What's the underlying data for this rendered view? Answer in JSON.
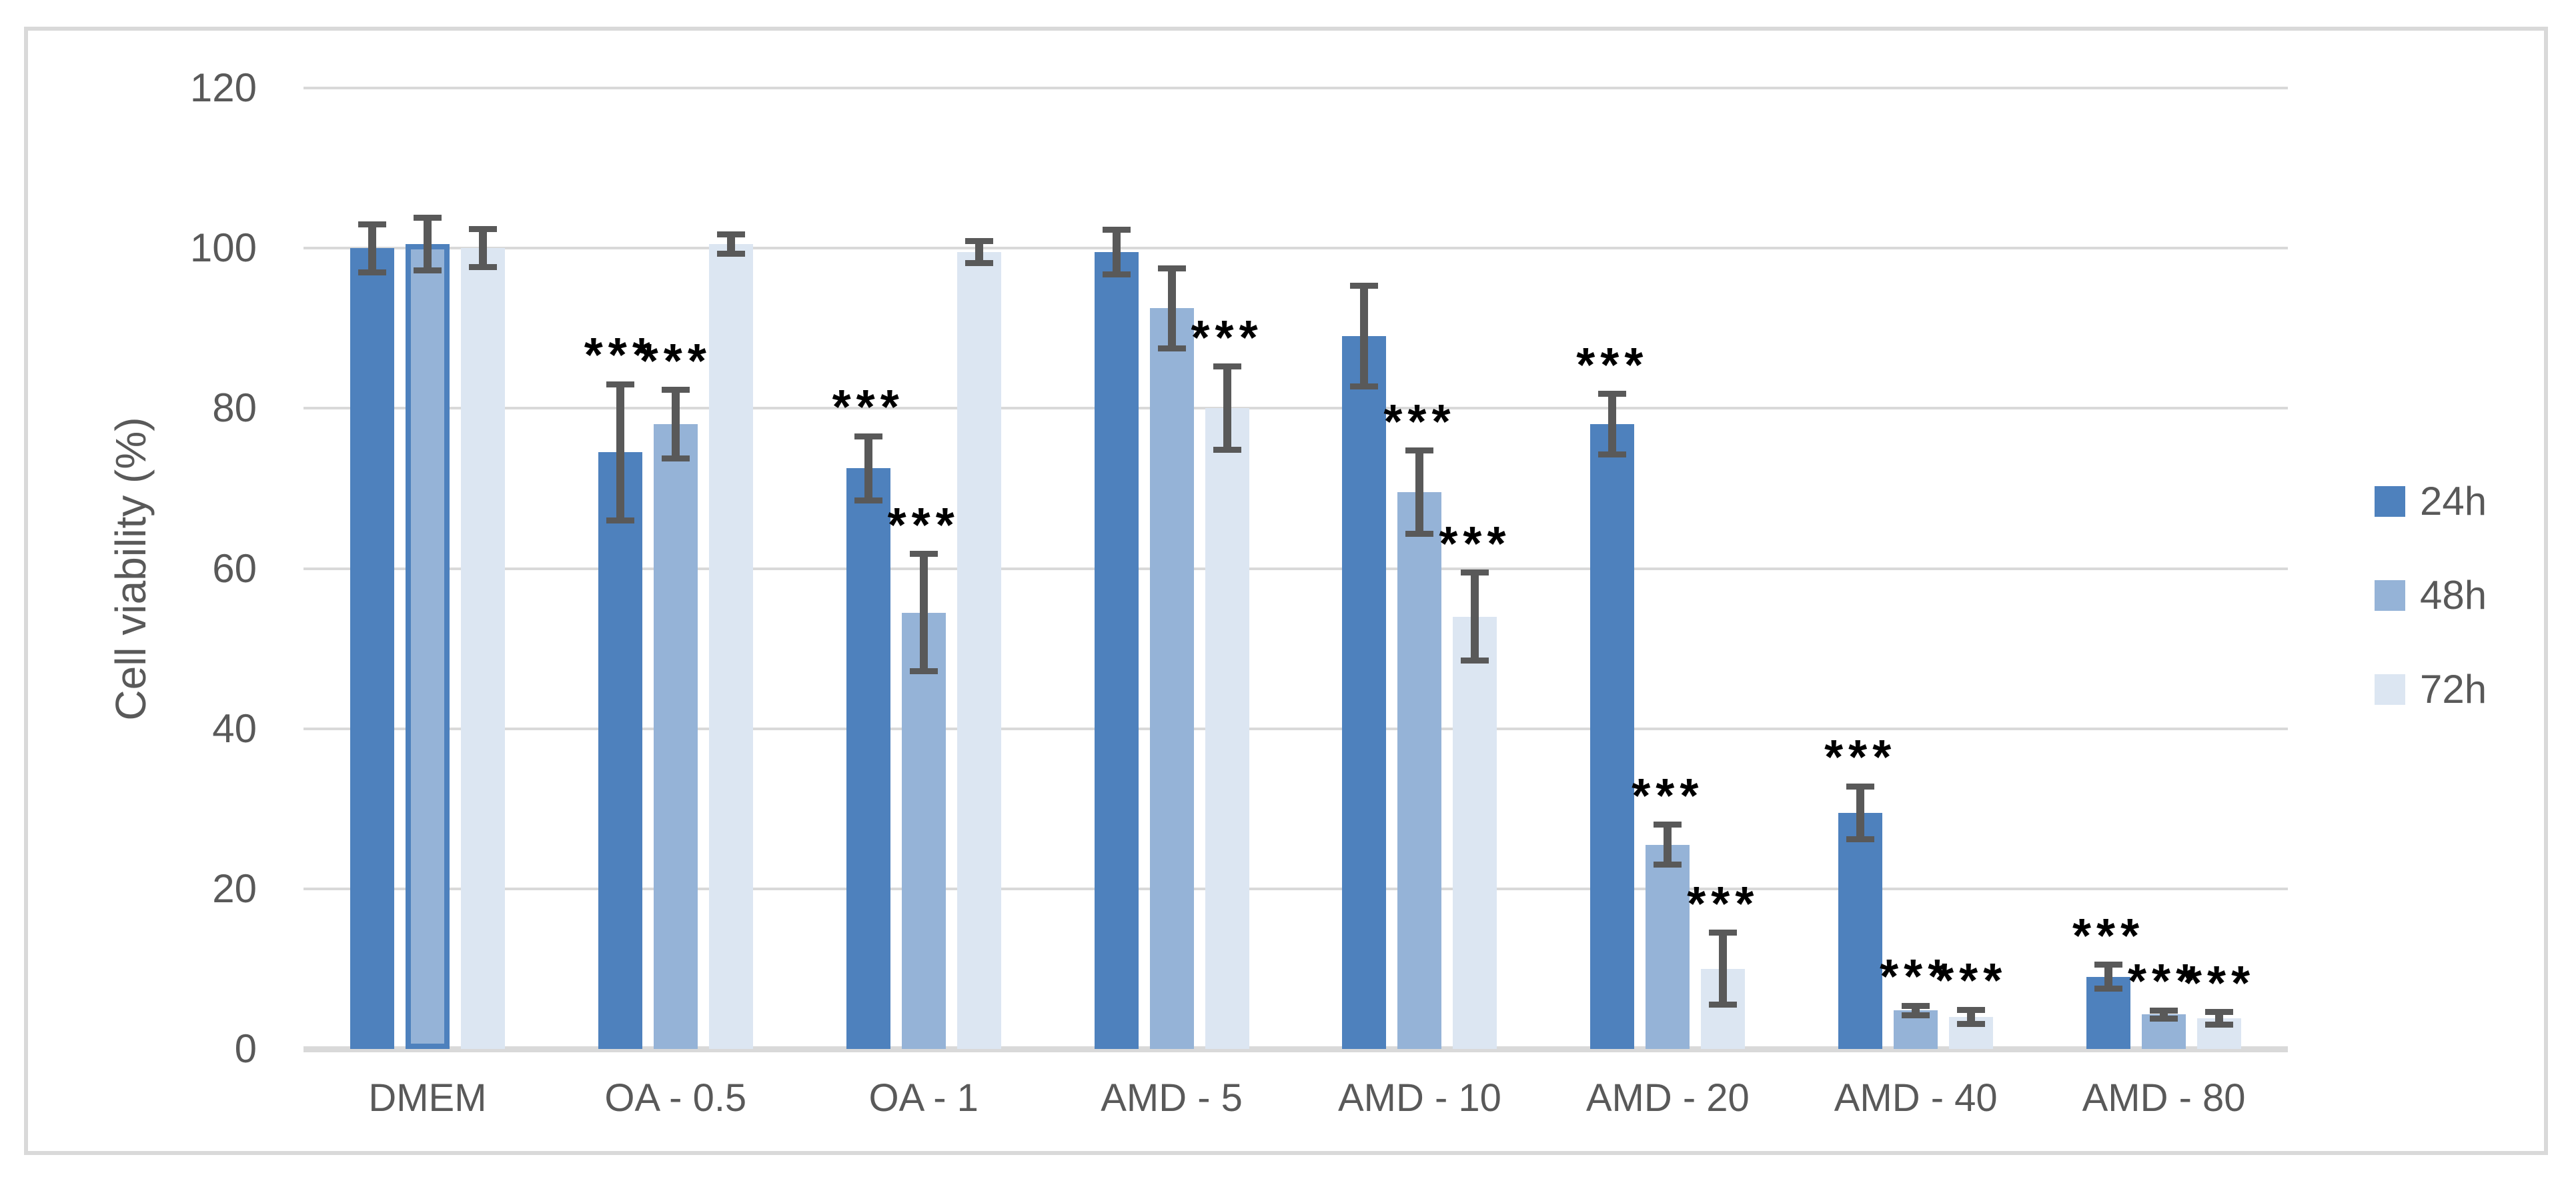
{
  "figure": {
    "background": "#ffffff",
    "frame_color": "#D9D9D9",
    "grid_color": "#D9D9D9",
    "text_color": "#595959",
    "sig_color": "#000000",
    "error_bar_color": "#595959",
    "y_axis_title": "Cell viability (%)",
    "sig_symbol": "***"
  },
  "legend": {
    "items": [
      {
        "label": "24h",
        "color": "#4E81BD"
      },
      {
        "label": "48h",
        "color": "#95B3D7"
      },
      {
        "label": "72h",
        "color": "#DCE6F2"
      }
    ]
  },
  "chart_data": {
    "type": "bar",
    "title": "",
    "xlabel": "",
    "ylabel": "Cell viability (%)",
    "ylim": [
      0,
      120
    ],
    "y_ticks": [
      0,
      20,
      40,
      60,
      80,
      100,
      120
    ],
    "grid": "horizontal",
    "legend_position": "right-middle",
    "error_bars": true,
    "significance_marker": "***",
    "categories": [
      "DMEM",
      "OA - 0.5",
      "OA - 1",
      "AMD - 5",
      "AMD - 10",
      "AMD - 20",
      "AMD - 40",
      "AMD - 80"
    ],
    "series": [
      {
        "name": "24h",
        "color": "#4E81BD",
        "values": [
          100,
          74.5,
          72.5,
          99.5,
          89,
          78,
          29.5,
          9
        ],
        "errors": [
          3,
          8.5,
          4,
          2.8,
          6.3,
          3.8,
          3.3,
          1.5
        ],
        "significant": [
          false,
          true,
          true,
          false,
          false,
          true,
          true,
          true
        ]
      },
      {
        "name": "48h",
        "color": "#95B3D7",
        "values": [
          100.5,
          78,
          54.5,
          92.5,
          69.5,
          25.5,
          4.8,
          4.3
        ],
        "errors": [
          3.3,
          4.3,
          7.3,
          5,
          5.2,
          2.5,
          0.6,
          0.5
        ],
        "significant": [
          false,
          true,
          true,
          false,
          true,
          true,
          true,
          true
        ]
      },
      {
        "name": "72h",
        "color": "#DCE6F2",
        "values": [
          100,
          100.5,
          99.5,
          80,
          54,
          10,
          4,
          3.8
        ],
        "errors": [
          2.4,
          1.2,
          1.4,
          5.2,
          5.5,
          4.5,
          0.9,
          0.8
        ],
        "significant": [
          false,
          false,
          false,
          true,
          true,
          true,
          true,
          true
        ]
      }
    ],
    "outlined_bar": {
      "series": "48h",
      "category": "DMEM",
      "outline_color": "#4E81BD"
    }
  }
}
